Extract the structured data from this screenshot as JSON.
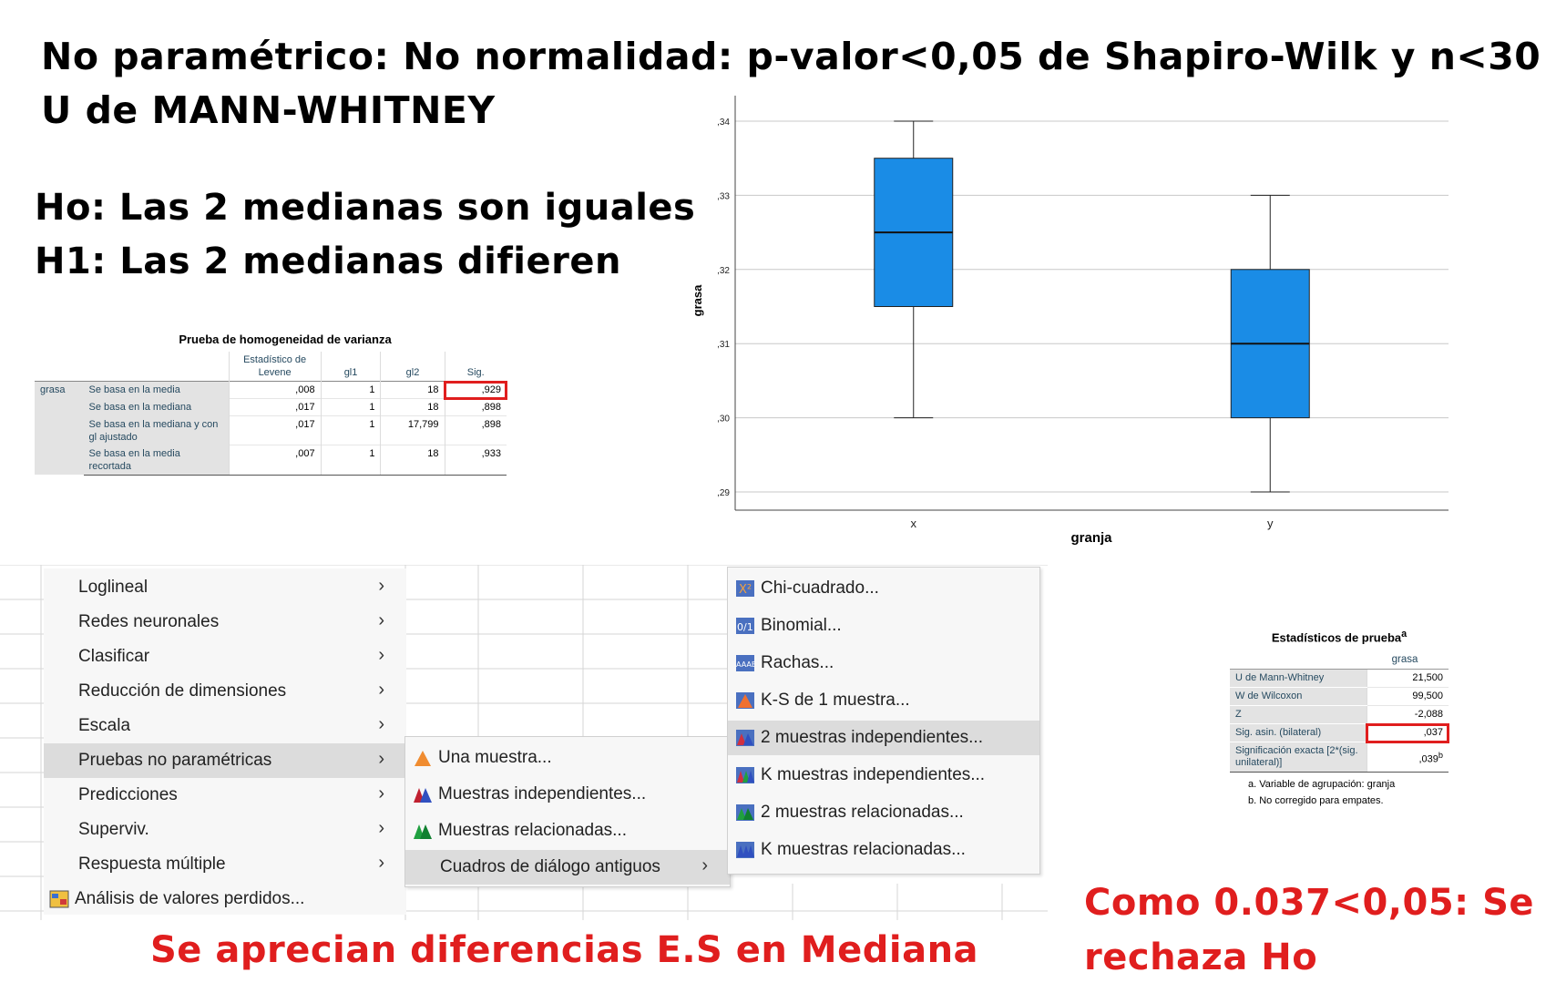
{
  "headings": {
    "line1": "No paramétrico: No normalidad: p-valor<0,05 de Shapiro-Wilk y n<30",
    "line2": "U de MANN-WHITNEY",
    "ho": "Ho: Las 2 medianas son iguales",
    "h1": "H1: Las 2 medianas difieren",
    "conclusion_left": "Se aprecian diferencias E.S en Mediana",
    "conclusion_right_1": "Como 0.037<0,05: Se",
    "conclusion_right_2": "rechaza Ho"
  },
  "levene": {
    "title": "Prueba de homogeneidad de varianza",
    "col_headers": [
      "Estadístico de Levene",
      "gl1",
      "gl2",
      "Sig."
    ],
    "variable": "grasa",
    "rows": [
      {
        "label": "Se basa en la media",
        "stat": ",008",
        "gl1": "1",
        "gl2": "18",
        "sig": ",929"
      },
      {
        "label": "Se basa en la mediana",
        "stat": ",017",
        "gl1": "1",
        "gl2": "18",
        "sig": ",898"
      },
      {
        "label": "Se basa en la mediana y con gl ajustado",
        "stat": ",017",
        "gl1": "1",
        "gl2": "17,799",
        "sig": ",898"
      },
      {
        "label": "Se basa en la media recortada",
        "stat": ",007",
        "gl1": "1",
        "gl2": "18",
        "sig": ",933"
      }
    ]
  },
  "chart_data": {
    "type": "box",
    "xlabel": "granja",
    "ylabel": "grasa",
    "ylim": [
      0.29,
      0.34
    ],
    "yticks": [
      ",29",
      ",30",
      ",31",
      ",32",
      ",33",
      ",34"
    ],
    "categories": [
      "x",
      "y"
    ],
    "boxes": [
      {
        "category": "x",
        "min": 0.3,
        "q1": 0.315,
        "median": 0.325,
        "q3": 0.335,
        "max": 0.34
      },
      {
        "category": "y",
        "min": 0.29,
        "q1": 0.3,
        "median": 0.31,
        "q3": 0.32,
        "max": 0.33
      }
    ],
    "grid": true,
    "box_color": "#1a8ce6"
  },
  "menu_main": {
    "items": [
      {
        "label": "Loglineal",
        "submenu": true
      },
      {
        "label": "Redes neuronales",
        "submenu": true
      },
      {
        "label": "Clasificar",
        "submenu": true
      },
      {
        "label": "Reducción de dimensiones",
        "submenu": true
      },
      {
        "label": "Escala",
        "submenu": true
      },
      {
        "label": "Pruebas no paramétricas",
        "submenu": true,
        "selected": true
      },
      {
        "label": "Predicciones",
        "submenu": true
      },
      {
        "label": "Superviv.",
        "submenu": true
      },
      {
        "label": "Respuesta múltiple",
        "submenu": true
      },
      {
        "label": "Análisis de valores perdidos...",
        "submenu": false
      }
    ]
  },
  "menu_nonparam": {
    "items": [
      {
        "label": "Una muestra..."
      },
      {
        "label": "Muestras independientes..."
      },
      {
        "label": "Muestras relacionadas..."
      },
      {
        "label": "Cuadros de diálogo antiguos",
        "submenu": true,
        "selected": true
      }
    ]
  },
  "menu_legacy": {
    "items": [
      {
        "label": "Chi-cuadrado..."
      },
      {
        "label": "Binomial..."
      },
      {
        "label": "Rachas..."
      },
      {
        "label": "K-S de 1 muestra..."
      },
      {
        "label": "2 muestras independientes...",
        "selected": true
      },
      {
        "label": "K muestras independientes..."
      },
      {
        "label": "2 muestras relacionadas..."
      },
      {
        "label": "K muestras relacionadas..."
      }
    ]
  },
  "teststats": {
    "title": "Estadísticos de prueba",
    "title_sup": "a",
    "col_header": "grasa",
    "rows": [
      {
        "label": "U de Mann-Whitney",
        "value": "21,500"
      },
      {
        "label": "W de Wilcoxon",
        "value": "99,500"
      },
      {
        "label": "Z",
        "value": "-2,088"
      },
      {
        "label": "Sig. asin. (bilateral)",
        "value": ",037"
      },
      {
        "label": "Significación exacta [2*(sig. unilateral)]",
        "value": ",039",
        "sup": "b"
      }
    ],
    "foot_a": "a. Variable de agrupación: granja",
    "foot_b": "b. No corregido para empates."
  }
}
